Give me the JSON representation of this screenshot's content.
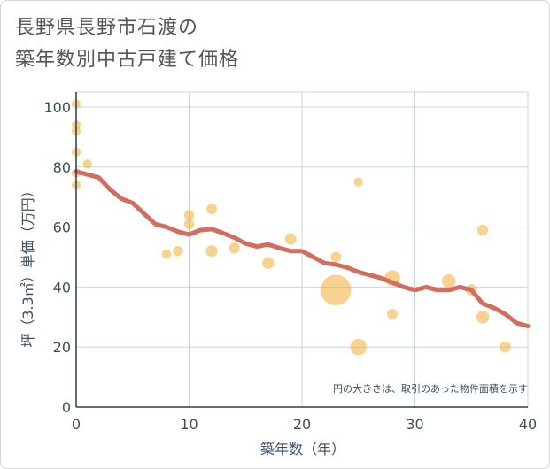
{
  "title_line1": "長野県長野市石渡の",
  "title_line2": "築年数別中古戸建て価格",
  "note": "円の大きさは、取引のあった物件面積を示す",
  "colors": {
    "bubble": "#f2b544",
    "line": "#d26e5d",
    "grid": "#c8d4e0",
    "text": "#3d4f5f"
  },
  "chart_data": {
    "type": "scatter",
    "xlabel": "築年数（年）",
    "ylabel": "坪（3.3㎡）単価（万円）",
    "xlim": [
      0,
      40
    ],
    "ylim": [
      0,
      105
    ],
    "xticks": [
      0,
      10,
      20,
      30,
      40
    ],
    "yticks": [
      0,
      20,
      40,
      60,
      80,
      100
    ],
    "grid": true,
    "bubbles": [
      {
        "x": 0,
        "y": 101,
        "s": 1
      },
      {
        "x": 0,
        "y": 94,
        "s": 1
      },
      {
        "x": 0,
        "y": 92,
        "s": 1
      },
      {
        "x": 0,
        "y": 85,
        "s": 1
      },
      {
        "x": 0,
        "y": 78,
        "s": 1
      },
      {
        "x": 0,
        "y": 74,
        "s": 1
      },
      {
        "x": 1,
        "y": 81,
        "s": 1
      },
      {
        "x": 8,
        "y": 51,
        "s": 1
      },
      {
        "x": 9,
        "y": 52,
        "s": 1.2
      },
      {
        "x": 10,
        "y": 64,
        "s": 1.2
      },
      {
        "x": 10,
        "y": 61,
        "s": 1.2
      },
      {
        "x": 12,
        "y": 66,
        "s": 1.3
      },
      {
        "x": 12,
        "y": 52,
        "s": 1.6
      },
      {
        "x": 14,
        "y": 53,
        "s": 1.4
      },
      {
        "x": 17,
        "y": 48,
        "s": 1.7
      },
      {
        "x": 19,
        "y": 56,
        "s": 1.6
      },
      {
        "x": 23,
        "y": 50,
        "s": 1.3
      },
      {
        "x": 23,
        "y": 39,
        "s": 11
      },
      {
        "x": 25,
        "y": 75,
        "s": 1
      },
      {
        "x": 25,
        "y": 20,
        "s": 3.2
      },
      {
        "x": 28,
        "y": 43,
        "s": 2.9
      },
      {
        "x": 28,
        "y": 31,
        "s": 1.3
      },
      {
        "x": 33,
        "y": 42,
        "s": 2.2
      },
      {
        "x": 35,
        "y": 39,
        "s": 1.6
      },
      {
        "x": 36,
        "y": 59,
        "s": 1.4
      },
      {
        "x": 36,
        "y": 30,
        "s": 2
      },
      {
        "x": 38,
        "y": 20,
        "s": 1.5
      }
    ],
    "trend": {
      "x": [
        0,
        1,
        2,
        3,
        4,
        5,
        6,
        7,
        8,
        9,
        10,
        11,
        12,
        13,
        14,
        15,
        16,
        17,
        18,
        19,
        20,
        21,
        22,
        23,
        24,
        25,
        26,
        27,
        28,
        29,
        30,
        31,
        32,
        33,
        34,
        35,
        36,
        37,
        38,
        39,
        40
      ],
      "y": [
        78.5,
        77.5,
        76.5,
        72.5,
        69.5,
        68,
        64.5,
        61,
        60,
        58.5,
        57.5,
        59,
        59.3,
        58,
        56.5,
        54.5,
        53.5,
        54.2,
        53,
        52,
        52,
        50,
        48,
        47.5,
        46.5,
        45,
        44,
        43,
        41.5,
        40,
        39,
        40,
        39,
        39,
        40,
        39,
        34.5,
        33,
        31,
        28,
        27
      ]
    }
  }
}
